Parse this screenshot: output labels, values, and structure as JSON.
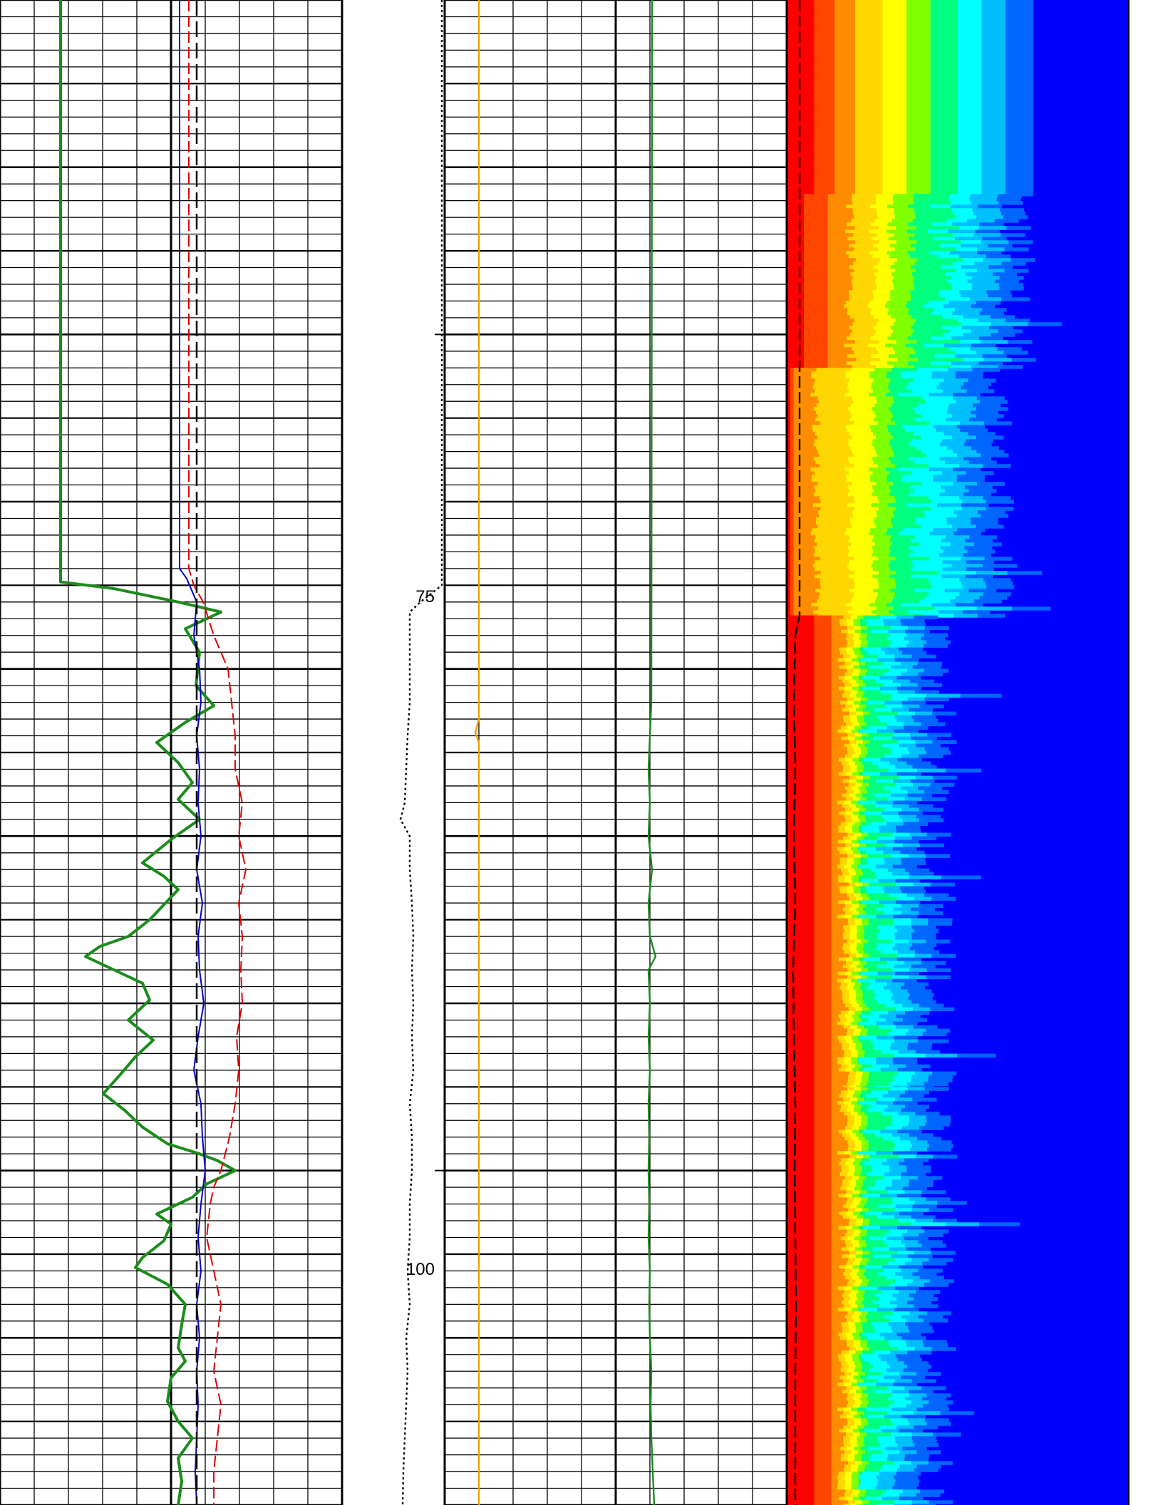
{
  "chart_data": [
    {
      "type": "line",
      "xlabel": "",
      "ylabel": "",
      "depth_range": [
        65,
        110
      ],
      "grid": "on",
      "series": [
        {
          "color": "#1a8c1a",
          "style": "solid",
          "points": [
            [
              65,
              85
            ],
            [
              82.4,
              85
            ],
            [
              82.6,
              160
            ],
            [
              83.0,
              250
            ],
            [
              83.3,
              310
            ],
            [
              83.8,
              260
            ],
            [
              84.5,
              280
            ],
            [
              85.5,
              275
            ],
            [
              86.1,
              300
            ],
            [
              86.6,
              260
            ],
            [
              87.2,
              220
            ],
            [
              87.8,
              250
            ],
            [
              88.4,
              270
            ],
            [
              88.9,
              250
            ],
            [
              89.5,
              280
            ],
            [
              90.1,
              240
            ],
            [
              90.8,
              200
            ],
            [
              91.2,
              230
            ],
            [
              91.6,
              250
            ],
            [
              92.5,
              210
            ],
            [
              93.0,
              180
            ],
            [
              93.3,
              140
            ],
            [
              93.6,
              120
            ],
            [
              93.9,
              150
            ],
            [
              94.4,
              200
            ],
            [
              94.9,
              210
            ],
            [
              95.5,
              180
            ],
            [
              96.1,
              215
            ],
            [
              96.6,
              190
            ],
            [
              97.1,
              170
            ],
            [
              97.7,
              145
            ],
            [
              98.2,
              175
            ],
            [
              98.7,
              200
            ],
            [
              99.2,
              235
            ],
            [
              99.5,
              280
            ],
            [
              99.7,
              305
            ],
            [
              100.0,
              330
            ],
            [
              100.4,
              290
            ],
            [
              100.8,
              270
            ],
            [
              101.3,
              220
            ],
            [
              101.6,
              240
            ],
            [
              102.1,
              230
            ],
            [
              102.6,
              200
            ],
            [
              102.9,
              190
            ],
            [
              103.4,
              235
            ],
            [
              104.0,
              260
            ],
            [
              104.6,
              255
            ],
            [
              105.3,
              250
            ],
            [
              105.7,
              260
            ],
            [
              106.2,
              240
            ],
            [
              106.9,
              235
            ],
            [
              107.5,
              250
            ],
            [
              108.0,
              270
            ],
            [
              108.6,
              250
            ],
            [
              109.3,
              255
            ],
            [
              110,
              250
            ]
          ]
        },
        {
          "color": "#0000cc",
          "style": "solid",
          "points": [
            [
              65,
              252
            ],
            [
              82.0,
              252
            ],
            [
              82.3,
              262
            ],
            [
              83.0,
              276
            ],
            [
              84.0,
              272
            ],
            [
              85.0,
              280
            ],
            [
              86.0,
              282
            ],
            [
              87.0,
              276
            ],
            [
              88.0,
              280
            ],
            [
              89.0,
              278
            ],
            [
              90.0,
              282
            ],
            [
              91.0,
              276
            ],
            [
              92.0,
              284
            ],
            [
              93.0,
              278
            ],
            [
              94.0,
              280
            ],
            [
              95.0,
              286
            ],
            [
              96.0,
              278
            ],
            [
              97.0,
              272
            ],
            [
              98.0,
              282
            ],
            [
              99.0,
              284
            ],
            [
              100.0,
              288
            ],
            [
              101.0,
              282
            ],
            [
              102.0,
              278
            ],
            [
              103.0,
              282
            ],
            [
              104.0,
              276
            ],
            [
              105.0,
              280
            ],
            [
              106.0,
              276
            ],
            [
              107.0,
              278
            ],
            [
              108.0,
              276
            ],
            [
              109.0,
              274
            ],
            [
              110,
              276
            ]
          ]
        },
        {
          "color": "#e00000",
          "style": "dashed",
          "points": [
            [
              65,
              265
            ],
            [
              82.0,
              265
            ],
            [
              82.5,
              272
            ],
            [
              83.0,
              285
            ],
            [
              84.0,
              300
            ],
            [
              85.0,
              320
            ],
            [
              86.0,
              325
            ],
            [
              87.0,
              330
            ],
            [
              88.0,
              330
            ],
            [
              89.0,
              340
            ],
            [
              90.0,
              335
            ],
            [
              91.0,
              345
            ],
            [
              92.0,
              335
            ],
            [
              93.0,
              340
            ],
            [
              94.0,
              338
            ],
            [
              95.0,
              340
            ],
            [
              96.0,
              332
            ],
            [
              97.0,
              335
            ],
            [
              98.0,
              330
            ],
            [
              99.0,
              322
            ],
            [
              100.0,
              310
            ],
            [
              100.5,
              300
            ],
            [
              101.0,
              295
            ],
            [
              102.0,
              290
            ],
            [
              103.0,
              300
            ],
            [
              104.0,
              310
            ],
            [
              105.0,
              305
            ],
            [
              106.0,
              300
            ],
            [
              107.0,
              310
            ],
            [
              108.0,
              305
            ],
            [
              109.0,
              300
            ],
            [
              110,
              300
            ]
          ]
        },
        {
          "color": "#000000",
          "style": "long-dash",
          "points": [
            [
              65,
              276
            ],
            [
              110,
              276
            ]
          ]
        }
      ]
    },
    {
      "type": "line",
      "xlabel": "",
      "ylabel": "",
      "depth_range": [
        65,
        110
      ],
      "series": [
        {
          "color": "#000000",
          "style": "dotted",
          "points": [
            [
              65,
              620
            ],
            [
              82.5,
              620
            ],
            [
              83.0,
              590
            ],
            [
              83.3,
              575
            ],
            [
              84.0,
              575
            ],
            [
              85.0,
              575
            ],
            [
              86.0,
              575
            ],
            [
              87.0,
              572
            ],
            [
              88.0,
              570
            ],
            [
              89.0,
              568
            ],
            [
              89.5,
              562
            ],
            [
              90.0,
              575
            ],
            [
              91.0,
              575
            ],
            [
              92.0,
              578
            ],
            [
              93.0,
              580
            ],
            [
              94.0,
              578
            ],
            [
              95.0,
              580
            ],
            [
              96.0,
              578
            ],
            [
              97.0,
              580
            ],
            [
              98.0,
              575
            ],
            [
              99.0,
              578
            ],
            [
              100.0,
              578
            ],
            [
              101.0,
              575
            ],
            [
              102.0,
              575
            ],
            [
              103.0,
              572
            ],
            [
              104.0,
              575
            ],
            [
              105.0,
              570
            ],
            [
              106.0,
              572
            ],
            [
              107.0,
              570
            ],
            [
              108.0,
              568
            ],
            [
              109.0,
              566
            ],
            [
              110,
              565
            ]
          ]
        }
      ]
    },
    {
      "type": "line",
      "xlabel": "",
      "ylabel": "",
      "depth_range": [
        65,
        110
      ],
      "grid": "on",
      "series": [
        {
          "color": "#f0a000",
          "style": "solid",
          "points": [
            [
              65,
              672
            ],
            [
              86.5,
              672
            ],
            [
              86.9,
              667
            ],
            [
              87.2,
              672
            ],
            [
              110,
              672
            ]
          ]
        },
        {
          "color": "#1a8c1a",
          "style": "solid",
          "points": [
            [
              65,
              915
            ],
            [
              86.0,
              914
            ],
            [
              87.0,
              912
            ],
            [
              88.0,
              910
            ],
            [
              89.0,
              912
            ],
            [
              90.0,
              910
            ],
            [
              91.0,
              915
            ],
            [
              92.0,
              910
            ],
            [
              93.0,
              912
            ],
            [
              93.6,
              920
            ],
            [
              94.0,
              910
            ],
            [
              95.0,
              912
            ],
            [
              96.0,
              910
            ],
            [
              97.0,
              912
            ],
            [
              98.0,
              910
            ],
            [
              99.0,
              911
            ],
            [
              100.0,
              910
            ],
            [
              101.0,
              911
            ],
            [
              102.0,
              910
            ],
            [
              103.0,
              912
            ],
            [
              104.0,
              911
            ],
            [
              105.0,
              912
            ],
            [
              106.0,
              914
            ],
            [
              107.0,
              913
            ],
            [
              108.0,
              914
            ],
            [
              109.0,
              916
            ],
            [
              110,
              918
            ]
          ]
        }
      ]
    },
    {
      "type": "heatmap",
      "xlabel": "",
      "ylabel": "",
      "depth_range": [
        65,
        110
      ],
      "colormap": [
        "#ff0000",
        "#ff4500",
        "#ff8c00",
        "#ffd700",
        "#ffff00",
        "#7fff00",
        "#00ff7f",
        "#00ffff",
        "#00bfff",
        "#0066ff",
        "#0000ff"
      ],
      "background": "#0000ff",
      "zones": [
        {
          "from": 65,
          "to": 70.8,
          "edges": [
            0.08,
            0.14,
            0.2,
            0.28,
            0.35,
            0.42,
            0.5,
            0.57,
            0.64,
            0.72,
            0.8
          ],
          "noise": 0.0
        },
        {
          "from": 70.8,
          "to": 76.0,
          "edges": [
            0.05,
            0.12,
            0.18,
            0.25,
            0.3,
            0.36,
            0.44,
            0.5,
            0.58,
            0.65,
            0.72
          ],
          "noise": 0.12
        },
        {
          "from": 76.0,
          "to": 83.4,
          "edges": [
            0.01,
            0.02,
            0.08,
            0.18,
            0.25,
            0.3,
            0.36,
            0.45,
            0.52,
            0.6,
            0.66
          ],
          "noise": 0.1
        },
        {
          "from": 83.4,
          "to": 97.5,
          "edges": [
            0.08,
            0.13,
            0.16,
            0.18,
            0.2,
            0.22,
            0.25,
            0.3,
            0.35,
            0.42,
            0.52
          ],
          "noise": 0.12
        },
        {
          "from": 97.5,
          "to": 110,
          "edges": [
            0.08,
            0.13,
            0.16,
            0.18,
            0.2,
            0.22,
            0.25,
            0.3,
            0.35,
            0.42,
            0.5
          ],
          "noise": 0.12
        }
      ],
      "overlay": {
        "color": "#000000",
        "style": "dashed",
        "points": [
          [
            65,
            1122
          ],
          [
            83.4,
            1122
          ],
          [
            84.0,
            1116
          ],
          [
            86.0,
            1114
          ],
          [
            88.0,
            1116
          ],
          [
            90.0,
            1114
          ],
          [
            92.0,
            1116
          ],
          [
            94.0,
            1113
          ],
          [
            96.0,
            1114
          ],
          [
            98.0,
            1116
          ],
          [
            100.0,
            1115
          ],
          [
            102.0,
            1116
          ],
          [
            104.0,
            1117
          ],
          [
            106.0,
            1116
          ],
          [
            108.0,
            1116
          ],
          [
            110,
            1116
          ]
        ]
      }
    }
  ],
  "depth_labels": [
    "75",
    "100"
  ]
}
